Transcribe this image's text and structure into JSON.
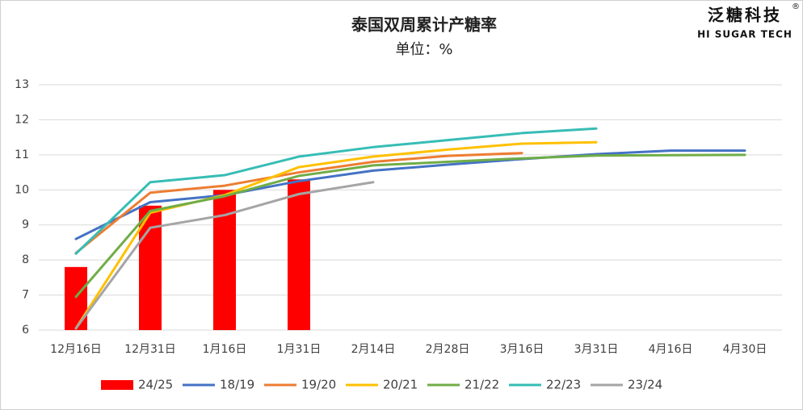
{
  "chart_data": {
    "type": "bar-line",
    "title": "泰国双周累计产糖率",
    "subtitle": "单位：%",
    "categories": [
      "12月16日",
      "12月31日",
      "1月16日",
      "1月31日",
      "2月14日",
      "2月28日",
      "3月16日",
      "3月31日",
      "4月16日",
      "4月30日"
    ],
    "series": [
      {
        "name": "24/25",
        "type": "bar",
        "color": "#ff0000",
        "values": [
          7.8,
          9.55,
          10.0,
          10.3,
          null,
          null,
          null,
          null,
          null,
          null
        ]
      },
      {
        "name": "18/19",
        "type": "line",
        "color": "#4472c4",
        "values": [
          8.6,
          9.65,
          9.85,
          10.25,
          10.55,
          10.72,
          10.88,
          11.02,
          11.12,
          11.12
        ]
      },
      {
        "name": "19/20",
        "type": "line",
        "color": "#ed7d31",
        "values": [
          8.2,
          9.92,
          10.12,
          10.5,
          10.8,
          10.97,
          11.05,
          null,
          null,
          null
        ]
      },
      {
        "name": "20/21",
        "type": "line",
        "color": "#ffc000",
        "values": [
          6.05,
          9.35,
          9.85,
          10.65,
          10.95,
          11.15,
          11.32,
          11.36,
          null,
          null
        ]
      },
      {
        "name": "21/22",
        "type": "line",
        "color": "#70ad47",
        "values": [
          6.95,
          9.4,
          9.82,
          10.4,
          10.7,
          10.8,
          10.9,
          10.98,
          10.99,
          11.0
        ]
      },
      {
        "name": "22/23",
        "type": "line",
        "color": "#36bdb5",
        "values": [
          8.18,
          10.22,
          10.42,
          10.95,
          11.22,
          11.42,
          11.62,
          11.75,
          null,
          null
        ]
      },
      {
        "name": "23/24",
        "type": "line",
        "color": "#a5a5a5",
        "values": [
          6.05,
          8.92,
          9.28,
          9.88,
          10.22,
          null,
          null,
          null,
          null,
          null
        ]
      }
    ],
    "ylim": [
      6,
      13
    ],
    "yticks": [
      6,
      7,
      8,
      9,
      10,
      11,
      12,
      13
    ],
    "grid": true,
    "legend": "bottom"
  },
  "logo": {
    "name": "泛糖科技",
    "mark": "®",
    "tagline": "HI SUGAR TECH"
  }
}
